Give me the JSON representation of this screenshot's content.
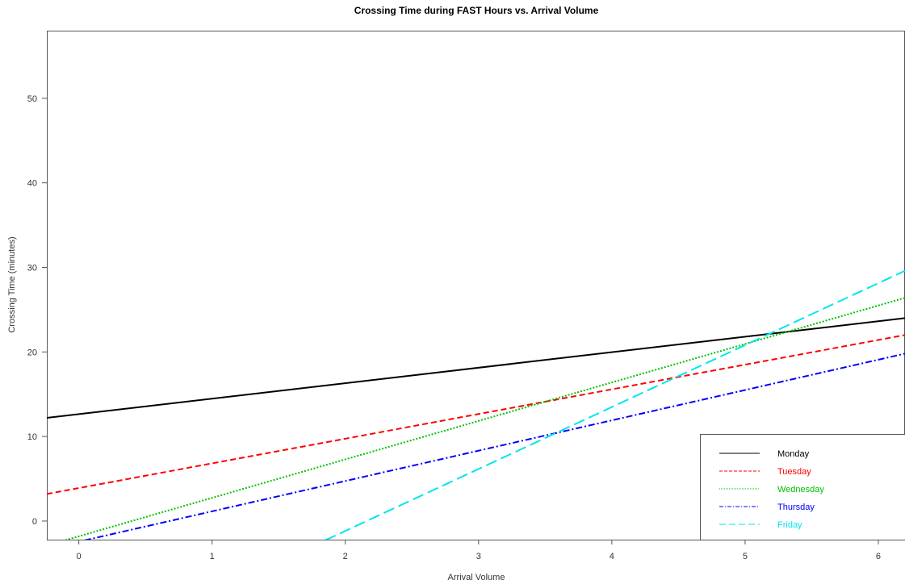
{
  "chart_data": {
    "type": "line",
    "title": "Crossing Time during FAST Hours vs. Arrival Volume",
    "xlabel": "Arrival Volume",
    "ylabel": "Crossing Time (minutes)",
    "xlim": [
      -0.24,
      6.2
    ],
    "ylim": [
      -2.2,
      58
    ],
    "xticks": [
      "0",
      "1",
      "2",
      "3",
      "4",
      "5",
      "6"
    ],
    "yticks": [
      "0",
      "10",
      "20",
      "30",
      "40",
      "50"
    ],
    "legend_position": "bottom-right",
    "series": [
      {
        "name": "Monday",
        "color": "#000000",
        "dash": "solid",
        "x": [
          -0.24,
          6.2
        ],
        "y": [
          12.2,
          24.0
        ]
      },
      {
        "name": "Tuesday",
        "color": "#ff0000",
        "dash": "dashed",
        "x": [
          -0.24,
          6.2
        ],
        "y": [
          3.2,
          22.0
        ]
      },
      {
        "name": "Wednesday",
        "color": "#00c000",
        "dash": "dotted",
        "x": [
          -0.24,
          6.2
        ],
        "y": [
          -2.9,
          26.4
        ]
      },
      {
        "name": "Thursday",
        "color": "#0000ff",
        "dash": "dotdash",
        "x": [
          -0.24,
          6.2
        ],
        "y": [
          -3.3,
          19.8
        ]
      },
      {
        "name": "Friday",
        "color": "#00e5ee",
        "dash": "longdash",
        "x": [
          1.3,
          6.2
        ],
        "y": [
          -6.3,
          29.6
        ]
      }
    ]
  }
}
